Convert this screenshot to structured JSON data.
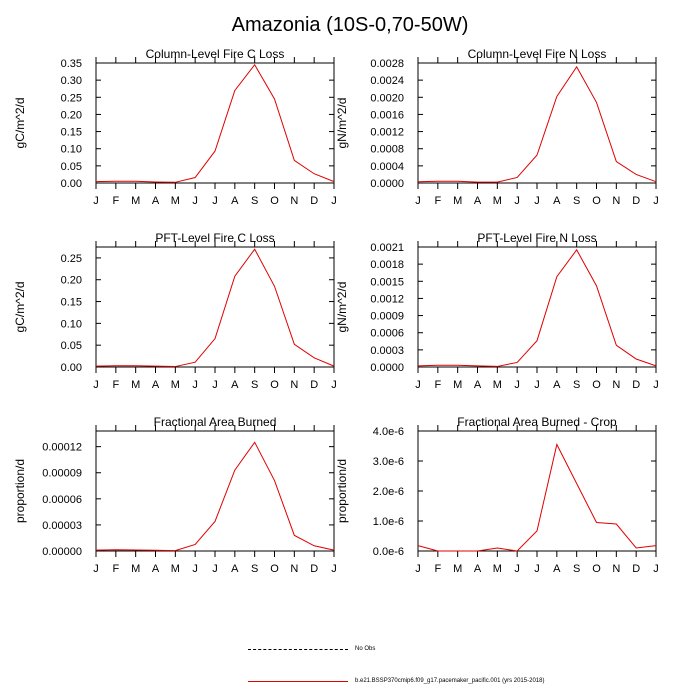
{
  "title": "Amazonia (10S-0,70-50W)",
  "months": [
    "J",
    "F",
    "M",
    "A",
    "M",
    "J",
    "J",
    "A",
    "S",
    "O",
    "N",
    "D",
    "J"
  ],
  "legend": {
    "obs_label": "No Obs",
    "model_label": "b.e21.BSSP370cmip6.f09_g17.pacemaker_pacific.001 (yrs 2015-2018)"
  },
  "colors": {
    "model_line": "#e00000",
    "axis": "#000000"
  },
  "chart_data": [
    {
      "type": "line",
      "title": "Column-Level Fire C Loss",
      "ylabel": "gC/m^2/d",
      "ylim": [
        0,
        0.35
      ],
      "yticks": [
        "0.00",
        "0.05",
        "0.10",
        "0.15",
        "0.20",
        "0.25",
        "0.30",
        "0.35"
      ],
      "yvals": [
        0,
        0.05,
        0.1,
        0.15,
        0.2,
        0.25,
        0.3,
        0.35
      ],
      "series": [
        {
          "values": [
            0.004,
            0.005,
            0.005,
            0.003,
            0.002,
            0.016,
            0.093,
            0.27,
            0.345,
            0.245,
            0.066,
            0.027,
            0.004
          ]
        }
      ]
    },
    {
      "type": "line",
      "title": "Column-Level Fire N Loss",
      "ylabel": "gN/m^2/d",
      "ylim": [
        0,
        0.0028
      ],
      "yticks": [
        "0.0000",
        "0.0004",
        "0.0008",
        "0.0012",
        "0.0016",
        "0.0020",
        "0.0024",
        "0.0028"
      ],
      "yvals": [
        0,
        0.0004,
        0.0008,
        0.0012,
        0.0016,
        0.002,
        0.0024,
        0.0028
      ],
      "series": [
        {
          "values": [
            3e-05,
            4e-05,
            4e-05,
            2e-05,
            2e-05,
            0.00013,
            0.00065,
            0.00202,
            0.00271,
            0.00188,
            0.0005,
            0.0002,
            3e-05
          ]
        }
      ]
    },
    {
      "type": "line",
      "title": "PFT-Level Fire C Loss",
      "ylabel": "gC/m^2/d",
      "ylim": [
        0,
        0.275
      ],
      "yticks": [
        "0.00",
        "0.05",
        "0.10",
        "0.15",
        "0.20",
        "0.25"
      ],
      "yvals": [
        0,
        0.05,
        0.1,
        0.15,
        0.2,
        0.25
      ],
      "series": [
        {
          "values": [
            0.002,
            0.003,
            0.003,
            0.002,
            0.001,
            0.011,
            0.065,
            0.208,
            0.27,
            0.185,
            0.052,
            0.021,
            0.002
          ]
        }
      ]
    },
    {
      "type": "line",
      "title": "PFT-Level Fire N Loss",
      "ylabel": "gN/m^2/d",
      "ylim": [
        0,
        0.0021
      ],
      "yticks": [
        "0.0000",
        "0.0003",
        "0.0006",
        "0.0009",
        "0.0012",
        "0.0015",
        "0.0018",
        "0.0021"
      ],
      "yvals": [
        0,
        0.0003,
        0.0006,
        0.0009,
        0.0012,
        0.0015,
        0.0018,
        0.0021
      ],
      "series": [
        {
          "values": [
            2e-05,
            3e-05,
            3e-05,
            2e-05,
            1e-05,
            8e-05,
            0.00046,
            0.00158,
            0.00205,
            0.00142,
            0.00038,
            0.00014,
            2e-05
          ]
        }
      ]
    },
    {
      "type": "line",
      "title": "Fractional Area Burned",
      "ylabel": "proportion/d",
      "ylim": [
        0,
        0.000138
      ],
      "yticks": [
        "0.00000",
        "0.00003",
        "0.00006",
        "0.00009",
        "0.00012"
      ],
      "yvals": [
        0,
        3e-05,
        6e-05,
        9e-05,
        0.00012
      ],
      "series": [
        {
          "values": [
            1e-06,
            1.5e-06,
            1.2e-06,
            8e-07,
            5e-07,
            7.5e-06,
            3.4e-05,
            9.3e-05,
            0.000125,
            8.1e-05,
            1.8e-05,
            6e-06,
            1e-06
          ]
        }
      ]
    },
    {
      "type": "line",
      "title": "Fractional Area Burned - Crop",
      "ylabel": "proportion/d",
      "ylim": [
        0,
        4e-06
      ],
      "yticks": [
        "0.0e-6",
        "1.0e-6",
        "2.0e-6",
        "3.0e-6",
        "4.0e-6"
      ],
      "yvals": [
        0,
        1e-06,
        2e-06,
        3e-06,
        4e-06
      ],
      "series": [
        {
          "values": [
            1.8e-07,
            0.0,
            0.0,
            0.0,
            1e-07,
            0.0,
            6.7e-07,
            3.55e-06,
            2.25e-06,
            9.5e-07,
            9e-07,
            1e-07,
            1.8e-07
          ]
        }
      ]
    }
  ]
}
